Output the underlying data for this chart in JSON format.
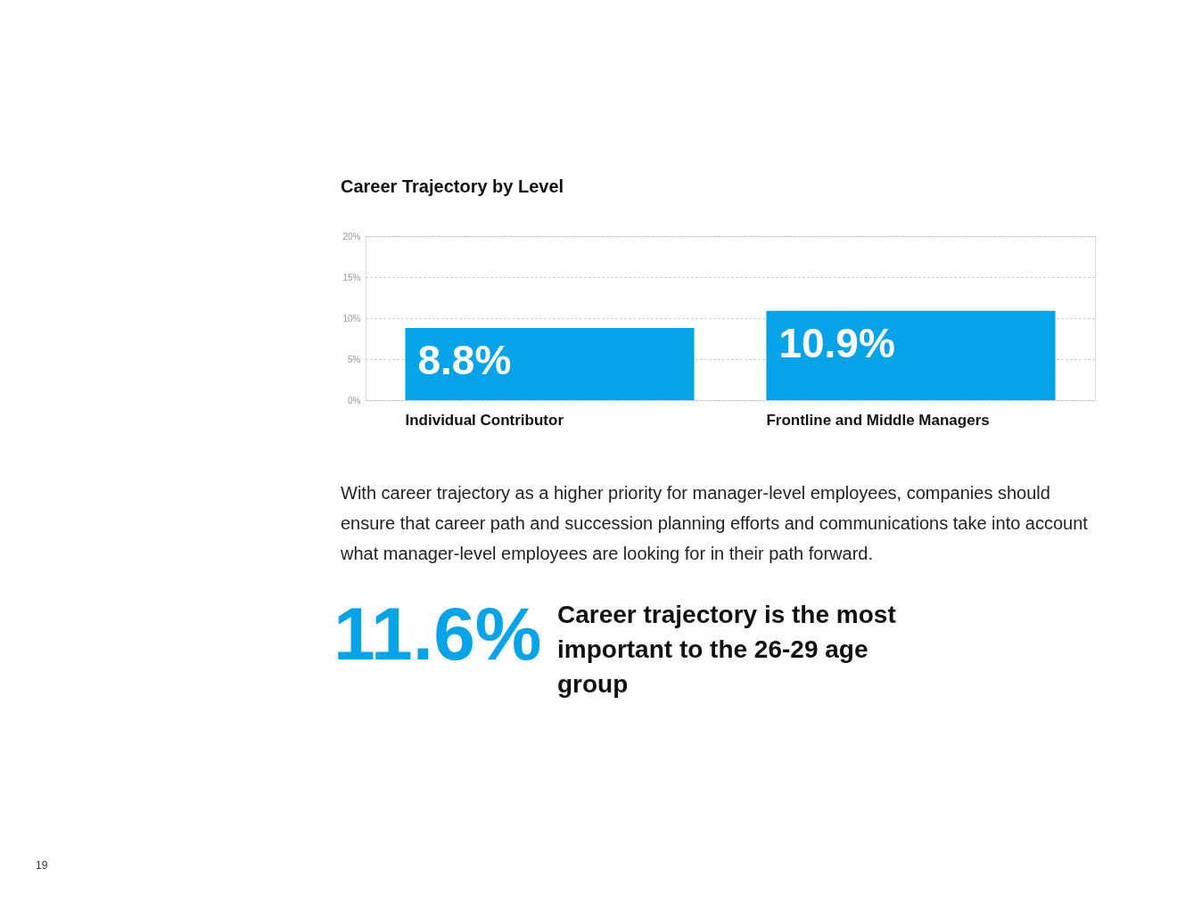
{
  "chart_data": {
    "type": "bar",
    "title": "Career Trajectory by Level",
    "categories": [
      "Individual Contributor",
      "Frontline and Middle Managers"
    ],
    "values": [
      8.8,
      10.9
    ],
    "value_labels": [
      "8.8%",
      "10.9%"
    ],
    "color": "#06a3e8",
    "ylim": [
      0,
      20
    ],
    "yticks": [
      {
        "value": 0,
        "label": "0%"
      },
      {
        "value": 5,
        "label": "5%"
      },
      {
        "value": 10,
        "label": "10%"
      },
      {
        "value": 15,
        "label": "15%"
      },
      {
        "value": 20,
        "label": "20%"
      }
    ],
    "grid": "y",
    "annotations": [
      "With career trajectory as a higher priority for manager-level employees, companies should ensure that career path and succession planning efforts and communications take into account what manager-level employees are looking for in their path forward.",
      "11.6%",
      "Career trajectory is the most important to the 26-29 age group",
      "19"
    ]
  }
}
